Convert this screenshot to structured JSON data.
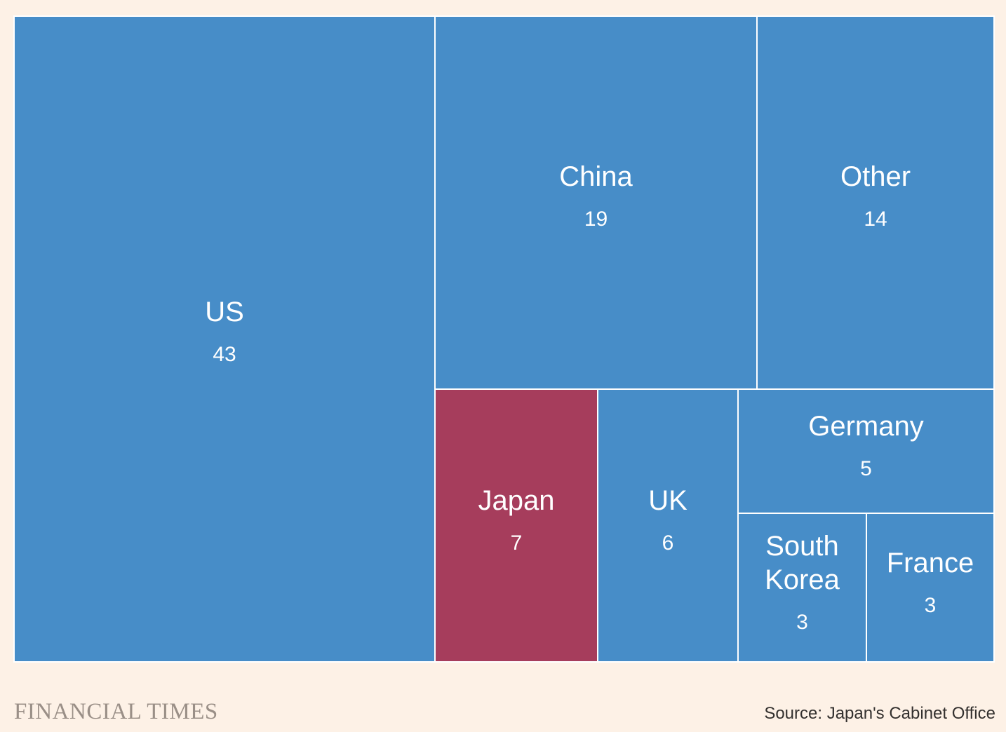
{
  "chart_data": {
    "type": "treemap",
    "title": "",
    "tiles": [
      {
        "name": "US",
        "value": 43,
        "color": "#478dc8"
      },
      {
        "name": "China",
        "value": 19,
        "color": "#478dc8"
      },
      {
        "name": "Other",
        "value": 14,
        "color": "#478dc8"
      },
      {
        "name": "Japan",
        "value": 7,
        "color": "#a63d5c"
      },
      {
        "name": "UK",
        "value": 6,
        "color": "#478dc8"
      },
      {
        "name": "Germany",
        "value": 5,
        "color": "#478dc8"
      },
      {
        "name": "South Korea",
        "value": 3,
        "color": "#478dc8"
      },
      {
        "name": "France",
        "value": 3,
        "color": "#478dc8"
      }
    ]
  },
  "footer": {
    "brand": "FINANCIAL TIMES",
    "source": "Source: Japan's Cabinet Office"
  }
}
